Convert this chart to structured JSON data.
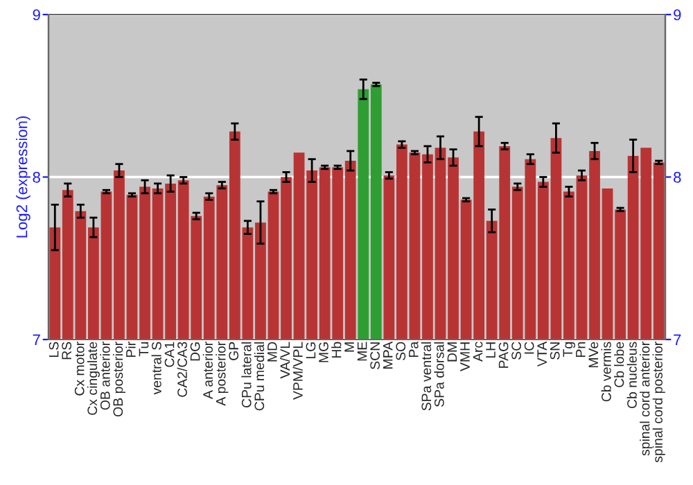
{
  "chart_data": {
    "type": "bar",
    "ylabel": "Log2 (expression)",
    "categories": [
      "LS",
      "RS",
      "Cx motor",
      "Cx cingulate",
      "OB anterior",
      "OB posterior",
      "Pir",
      "Tu",
      "ventral S",
      "CA1",
      "CA2/CA3",
      "DG",
      "A anterior",
      "A posterior",
      "GP",
      "CPu lateral",
      "CPu medial",
      "MD",
      "VA/VL",
      "VPM/VPL",
      "LG",
      "MG",
      "Hb",
      "M",
      "ME",
      "SCN",
      "MPA",
      "SO",
      "Pa",
      "SPa ventral",
      "SPa dorsal",
      "DM",
      "VMH",
      "Arc",
      "LH",
      "PAG",
      "SC",
      "IC",
      "VTA",
      "SN",
      "Tg",
      "Pn",
      "MVe",
      "Cb vermis",
      "Cb lobe",
      "Cb nucleus",
      "spinal cord anterior",
      "spinal cord posterior"
    ],
    "values": [
      7.69,
      7.92,
      7.79,
      7.69,
      7.91,
      8.04,
      7.89,
      7.94,
      7.93,
      7.96,
      7.98,
      7.76,
      7.88,
      7.95,
      8.28,
      7.69,
      7.72,
      7.91,
      8.0,
      8.15,
      8.04,
      8.06,
      8.06,
      8.1,
      8.54,
      8.57,
      8.01,
      8.2,
      8.15,
      8.14,
      8.18,
      8.12,
      7.86,
      8.28,
      7.73,
      8.19,
      7.94,
      8.11,
      7.97,
      8.24,
      7.91,
      8.01,
      8.16,
      7.93,
      7.8,
      8.13,
      8.18,
      8.09
    ],
    "errors": [
      0.14,
      0.04,
      0.04,
      0.06,
      0.01,
      0.04,
      0.01,
      0.04,
      0.03,
      0.05,
      0.02,
      0.02,
      0.02,
      0.02,
      0.05,
      0.04,
      0.13,
      0.01,
      0.03,
      null,
      0.07,
      0.01,
      0.01,
      0.06,
      0.06,
      0.01,
      0.02,
      0.02,
      0.01,
      0.05,
      0.07,
      0.05,
      0.01,
      0.09,
      0.07,
      0.02,
      0.02,
      0.03,
      0.03,
      0.09,
      0.03,
      0.03,
      0.05,
      null,
      0.01,
      0.1,
      null,
      0.01
    ],
    "colors": [
      "#b83434",
      "#b83434",
      "#b83434",
      "#b83434",
      "#b83434",
      "#b83434",
      "#b83434",
      "#b83434",
      "#b83434",
      "#b83434",
      "#b83434",
      "#b83434",
      "#b83434",
      "#b83434",
      "#b83434",
      "#b83434",
      "#b83434",
      "#b83434",
      "#b83434",
      "#b83434",
      "#b83434",
      "#b83434",
      "#b83434",
      "#b83434",
      "#2f9e32",
      "#2f9e32",
      "#b83434",
      "#b83434",
      "#b83434",
      "#b83434",
      "#b83434",
      "#b83434",
      "#b83434",
      "#b83434",
      "#b83434",
      "#b83434",
      "#b83434",
      "#b83434",
      "#b83434",
      "#b83434",
      "#b83434",
      "#b83434",
      "#b83434",
      "#b83434",
      "#b83434",
      "#b83434",
      "#b83434",
      "#b83434"
    ],
    "ylim": [
      7,
      9
    ],
    "yticks": [
      7,
      8,
      9
    ],
    "y2lim": [
      7,
      9
    ],
    "y2ticks": [
      7,
      8,
      9
    ],
    "grid": "y"
  }
}
